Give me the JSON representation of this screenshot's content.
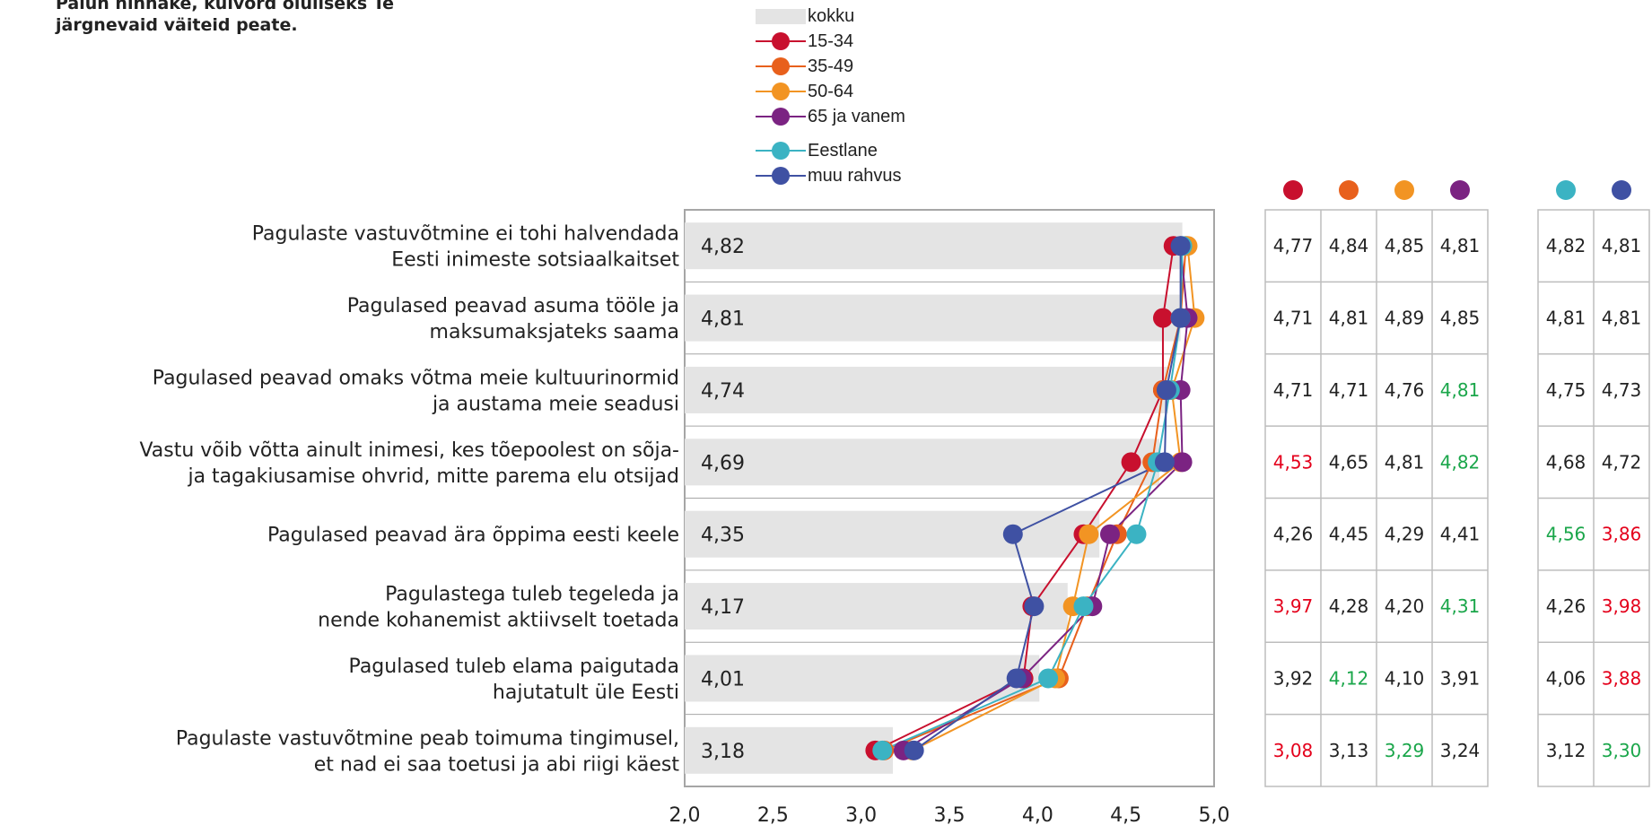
{
  "title_lines": [
    "Palun hinnake, kuivõrd oluliseks Te",
    "järgnevaid väiteid peate."
  ],
  "legend": {
    "bar_label": "kokku",
    "age_series": [
      {
        "name": "15-34",
        "color": "#c8102e"
      },
      {
        "name": "35-49",
        "color": "#e8601c"
      },
      {
        "name": "50-64",
        "color": "#f29423"
      },
      {
        "name": "65 ja vanem",
        "color": "#7b2382"
      }
    ],
    "nat_series": [
      {
        "name": "Eestlane",
        "color": "#3bb3c3"
      },
      {
        "name": "muu rahvus",
        "color": "#3f51a3"
      }
    ]
  },
  "colors": {
    "bar": "#e4e4e4",
    "grid": "#a6a6a6",
    "high": "#1aa64a",
    "low": "#e4001b",
    "text": "#222222"
  },
  "chart_data": {
    "type": "bar",
    "categories": [
      [
        "Pagulaste vastuvõtmine ei tohi halvendada",
        "Eesti inimeste sotsiaalkaitset"
      ],
      [
        "Pagulased peavad asuma tööle ja",
        "maksumaksjateks saama"
      ],
      [
        "Pagulased peavad omaks võtma meie kultuurinormid",
        "ja austama meie seadusi"
      ],
      [
        "Vastu võib võtta ainult inimesi, kes tõepoolest on sõja-",
        "ja tagakiusamise ohvrid, mitte parema elu otsijad"
      ],
      [
        "Pagulased peavad ära õppima eesti keele"
      ],
      [
        "Pagulastega tuleb tegeleda ja",
        "nende kohanemist aktiivselt toetada"
      ],
      [
        "Pagulased tuleb elama paigutada",
        "hajutatult üle Eesti"
      ],
      [
        "Pagulaste vastuvõtmine peab toimuma tingimusel,",
        "et nad ei saa toetusi ja abi riigi käest"
      ]
    ],
    "bar_series": {
      "name": "kokku",
      "values": [
        4.82,
        4.81,
        4.74,
        4.69,
        4.35,
        4.17,
        4.01,
        3.18
      ]
    },
    "bar_value_labels": [
      "4,82",
      "4,81",
      "4,74",
      "4,69",
      "4,35",
      "4,17",
      "4,01",
      "3,18"
    ],
    "line_series": [
      {
        "name": "15-34",
        "color": "#c8102e",
        "values": [
          4.77,
          4.71,
          4.71,
          4.53,
          4.26,
          3.97,
          3.92,
          3.08
        ]
      },
      {
        "name": "35-49",
        "color": "#e8601c",
        "values": [
          4.84,
          4.81,
          4.71,
          4.65,
          4.45,
          4.28,
          4.12,
          3.13
        ]
      },
      {
        "name": "50-64",
        "color": "#f29423",
        "values": [
          4.85,
          4.89,
          4.76,
          4.81,
          4.29,
          4.2,
          4.1,
          3.29
        ]
      },
      {
        "name": "65 ja vanem",
        "color": "#7b2382",
        "values": [
          4.81,
          4.85,
          4.81,
          4.82,
          4.41,
          4.31,
          3.91,
          3.24
        ]
      },
      {
        "name": "Eestlane",
        "color": "#3bb3c3",
        "values": [
          4.82,
          4.81,
          4.75,
          4.68,
          4.56,
          4.26,
          4.06,
          3.12
        ]
      },
      {
        "name": "muu rahvus",
        "color": "#3f51a3",
        "values": [
          4.81,
          4.81,
          4.73,
          4.72,
          3.86,
          3.98,
          3.88,
          3.3
        ]
      }
    ],
    "xlim": [
      2.0,
      5.0
    ],
    "x_ticks": [
      "2,0",
      "2,5",
      "3,0",
      "3,5",
      "4,0",
      "4,5",
      "5,0"
    ],
    "grid": true,
    "legend_position": "top"
  },
  "tables": {
    "age": {
      "columns": [
        "15-34",
        "35-49",
        "50-64",
        "65 ja vanem"
      ],
      "column_colors": [
        "#c8102e",
        "#e8601c",
        "#f29423",
        "#7b2382"
      ],
      "rows": [
        [
          {
            "v": "4,77",
            "s": ""
          },
          {
            "v": "4,84",
            "s": ""
          },
          {
            "v": "4,85",
            "s": ""
          },
          {
            "v": "4,81",
            "s": ""
          }
        ],
        [
          {
            "v": "4,71",
            "s": ""
          },
          {
            "v": "4,81",
            "s": ""
          },
          {
            "v": "4,89",
            "s": ""
          },
          {
            "v": "4,85",
            "s": ""
          }
        ],
        [
          {
            "v": "4,71",
            "s": ""
          },
          {
            "v": "4,71",
            "s": ""
          },
          {
            "v": "4,76",
            "s": ""
          },
          {
            "v": "4,81",
            "s": "high"
          }
        ],
        [
          {
            "v": "4,53",
            "s": "low"
          },
          {
            "v": "4,65",
            "s": ""
          },
          {
            "v": "4,81",
            "s": ""
          },
          {
            "v": "4,82",
            "s": "high"
          }
        ],
        [
          {
            "v": "4,26",
            "s": ""
          },
          {
            "v": "4,45",
            "s": ""
          },
          {
            "v": "4,29",
            "s": ""
          },
          {
            "v": "4,41",
            "s": ""
          }
        ],
        [
          {
            "v": "3,97",
            "s": "low"
          },
          {
            "v": "4,28",
            "s": ""
          },
          {
            "v": "4,20",
            "s": ""
          },
          {
            "v": "4,31",
            "s": "high"
          }
        ],
        [
          {
            "v": "3,92",
            "s": ""
          },
          {
            "v": "4,12",
            "s": "high"
          },
          {
            "v": "4,10",
            "s": ""
          },
          {
            "v": "3,91",
            "s": ""
          }
        ],
        [
          {
            "v": "3,08",
            "s": "low"
          },
          {
            "v": "3,13",
            "s": ""
          },
          {
            "v": "3,29",
            "s": "high"
          },
          {
            "v": "3,24",
            "s": ""
          }
        ]
      ]
    },
    "nat": {
      "columns": [
        "Eestlane",
        "muu rahvus"
      ],
      "column_colors": [
        "#3bb3c3",
        "#3f51a3"
      ],
      "rows": [
        [
          {
            "v": "4,82",
            "s": ""
          },
          {
            "v": "4,81",
            "s": ""
          }
        ],
        [
          {
            "v": "4,81",
            "s": ""
          },
          {
            "v": "4,81",
            "s": ""
          }
        ],
        [
          {
            "v": "4,75",
            "s": ""
          },
          {
            "v": "4,73",
            "s": ""
          }
        ],
        [
          {
            "v": "4,68",
            "s": ""
          },
          {
            "v": "4,72",
            "s": ""
          }
        ],
        [
          {
            "v": "4,56",
            "s": "high"
          },
          {
            "v": "3,86",
            "s": "low"
          }
        ],
        [
          {
            "v": "4,26",
            "s": ""
          },
          {
            "v": "3,98",
            "s": "low"
          }
        ],
        [
          {
            "v": "4,06",
            "s": ""
          },
          {
            "v": "3,88",
            "s": "low"
          }
        ],
        [
          {
            "v": "3,12",
            "s": ""
          },
          {
            "v": "3,30",
            "s": "high"
          }
        ]
      ]
    }
  }
}
